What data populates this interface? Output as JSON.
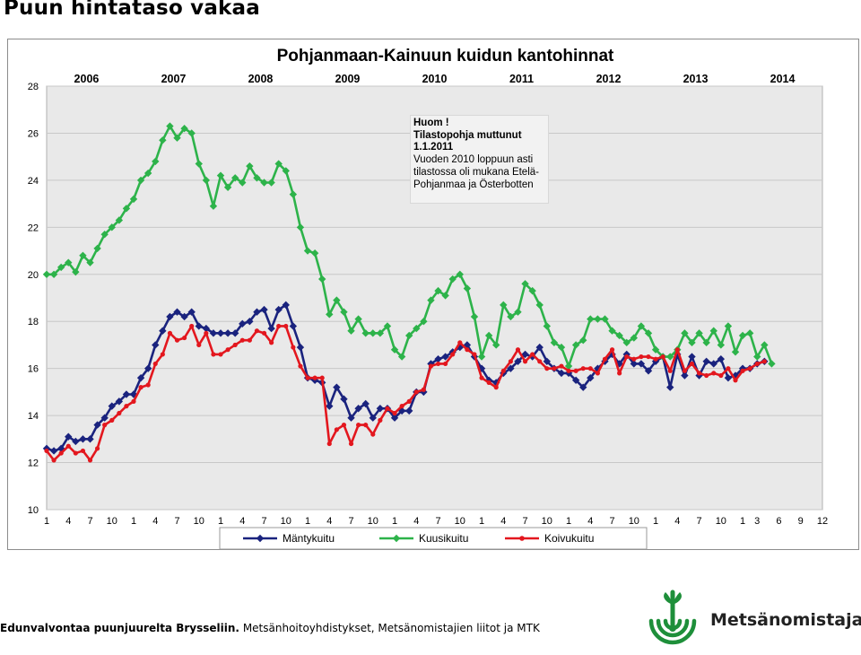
{
  "slide_title": "Puun hintataso vakaa",
  "note": {
    "line1": "Huom !",
    "line2": "Tilastopohja muttunut",
    "line3": "1.1.2011",
    "body_lines": [
      "Vuoden 2010 loppuun asti",
      "tilastossa oli mukana Etelä-",
      "Pohjanmaa ja Österbotten"
    ]
  },
  "footer": {
    "bold": "Edunvalvontaa puunjuurelta Brysseliin.",
    "normal": "Metsänhoitoyhdistykset, Metsänomistajien liitot ja MTK"
  },
  "brand": "Metsänomistajat",
  "colors": {
    "manty": "#1a237e",
    "kuusi": "#2db34a",
    "koivu": "#e3171e",
    "plot_bg": "#e9e9e9",
    "logo": "#1e8f3a"
  },
  "chart_data": {
    "type": "line",
    "title": "Pohjanmaan-Kainuun kuidun kantohinnat",
    "years": [
      "2006",
      "2007",
      "2008",
      "2009",
      "2010",
      "2011",
      "2012",
      "2013",
      "2014"
    ],
    "x_tick_labels": [
      "1",
      "4",
      "7",
      "10",
      "1",
      "4",
      "7",
      "10",
      "1",
      "4",
      "7",
      "10",
      "1",
      "4",
      "7",
      "10",
      "1",
      "4",
      "7",
      "10",
      "1",
      "4",
      "7",
      "10",
      "1",
      "4",
      "7",
      "10",
      "1",
      "4",
      "7",
      "10",
      "1",
      "3",
      "6",
      "9",
      "12"
    ],
    "ylim": [
      10,
      28
    ],
    "y_ticks": [
      10,
      12,
      14,
      16,
      18,
      20,
      22,
      24,
      26,
      28
    ],
    "x_range": [
      1,
      108
    ],
    "legend_position": "bottom",
    "series": [
      {
        "name": "Mäntykuitu",
        "color_key": "manty",
        "marker": "diamond",
        "values": [
          12.6,
          12.5,
          12.6,
          13.1,
          12.9,
          13.0,
          13.0,
          13.6,
          13.9,
          14.4,
          14.6,
          14.9,
          14.9,
          15.6,
          16.0,
          17.0,
          17.6,
          18.2,
          18.4,
          18.2,
          18.4,
          17.8,
          17.7,
          17.5,
          17.5,
          17.5,
          17.5,
          17.9,
          18.0,
          18.4,
          18.5,
          17.7,
          18.5,
          18.7,
          17.8,
          16.9,
          15.6,
          15.5,
          15.4,
          14.4,
          15.2,
          14.7,
          13.9,
          14.3,
          14.5,
          13.9,
          14.3,
          14.3,
          13.9,
          14.2,
          14.2,
          15.0,
          15.0,
          16.2,
          16.4,
          16.5,
          16.7,
          16.9,
          17.0,
          16.5,
          16.0,
          15.5,
          15.4,
          15.8,
          16.0,
          16.3,
          16.6,
          16.5,
          16.9,
          16.3,
          16.0,
          15.8,
          15.8,
          15.5,
          15.2,
          15.6,
          16.0,
          16.3,
          16.6,
          16.2,
          16.6,
          16.2,
          16.2,
          15.9,
          16.3,
          16.5,
          15.2,
          16.6,
          15.7,
          16.5,
          15.7,
          16.3,
          16.2,
          16.4,
          15.6,
          15.7,
          16.0,
          16.0,
          16.2,
          16.3
        ]
      },
      {
        "name": "Kuusikuitu",
        "color_key": "kuusi",
        "marker": "diamond",
        "values": [
          20.0,
          20.0,
          20.3,
          20.5,
          20.1,
          20.8,
          20.5,
          21.1,
          21.7,
          22.0,
          22.3,
          22.8,
          23.2,
          24.0,
          24.3,
          24.8,
          25.7,
          26.3,
          25.8,
          26.2,
          26.0,
          24.7,
          24.0,
          22.9,
          24.2,
          23.7,
          24.1,
          23.9,
          24.6,
          24.1,
          23.9,
          23.9,
          24.7,
          24.4,
          23.4,
          22.0,
          21.0,
          20.9,
          19.8,
          18.3,
          18.9,
          18.4,
          17.6,
          18.1,
          17.5,
          17.5,
          17.5,
          17.8,
          16.8,
          16.5,
          17.4,
          17.7,
          18.0,
          18.9,
          19.3,
          19.1,
          19.8,
          20.0,
          19.4,
          18.2,
          16.5,
          17.4,
          17.0,
          18.7,
          18.2,
          18.4,
          19.6,
          19.3,
          18.7,
          17.8,
          17.1,
          16.9,
          16.1,
          17.0,
          17.2,
          18.1,
          18.1,
          18.1,
          17.6,
          17.4,
          17.1,
          17.3,
          17.8,
          17.5,
          16.8,
          16.5,
          16.5,
          16.8,
          17.5,
          17.1,
          17.5,
          17.1,
          17.6,
          17.0,
          17.8,
          16.7,
          17.4,
          17.5,
          16.5,
          17.0,
          16.2
        ]
      },
      {
        "name": "Koivukuitu",
        "color_key": "koivu",
        "marker": "circle",
        "values": [
          12.5,
          12.1,
          12.4,
          12.7,
          12.4,
          12.5,
          12.1,
          12.6,
          13.6,
          13.8,
          14.1,
          14.4,
          14.6,
          15.2,
          15.3,
          16.2,
          16.6,
          17.5,
          17.2,
          17.3,
          17.8,
          17.0,
          17.5,
          16.6,
          16.6,
          16.8,
          17.0,
          17.2,
          17.2,
          17.6,
          17.5,
          17.1,
          17.8,
          17.8,
          16.9,
          16.1,
          15.6,
          15.6,
          15.6,
          12.8,
          13.4,
          13.6,
          12.8,
          13.6,
          13.6,
          13.2,
          13.8,
          14.3,
          14.1,
          14.4,
          14.6,
          15.0,
          15.1,
          16.1,
          16.2,
          16.2,
          16.6,
          17.1,
          16.8,
          16.6,
          15.6,
          15.4,
          15.2,
          15.9,
          16.3,
          16.8,
          16.3,
          16.6,
          16.3,
          16.0,
          16.0,
          16.1,
          15.9,
          15.9,
          16.0,
          16.0,
          15.8,
          16.4,
          16.8,
          15.8,
          16.5,
          16.4,
          16.5,
          16.5,
          16.4,
          16.5,
          15.9,
          16.8,
          15.9,
          16.2,
          15.8,
          15.7,
          15.8,
          15.7,
          16.0,
          15.5,
          15.9,
          16.0,
          16.2,
          16.3
        ]
      }
    ]
  }
}
